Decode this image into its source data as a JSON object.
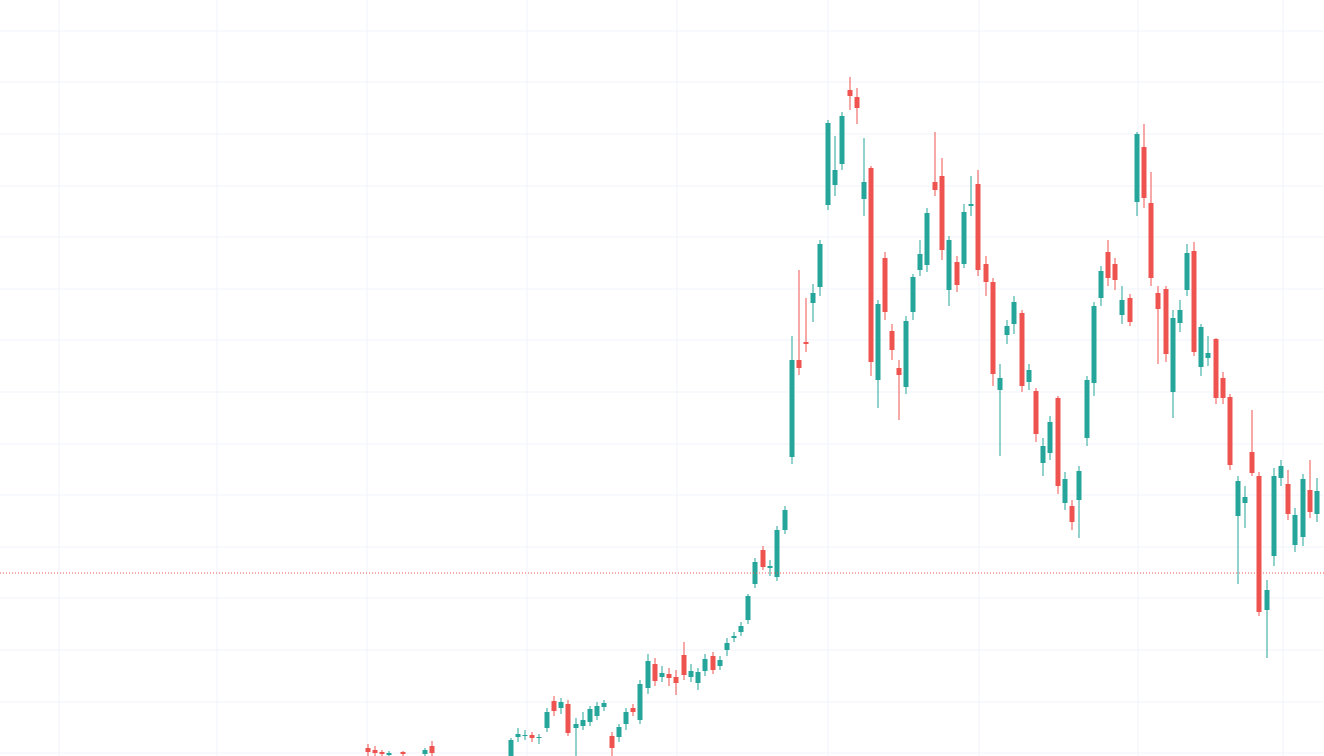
{
  "chart_data": {
    "type": "candlestick",
    "up_color": "#26a69a",
    "down_color": "#ef5350",
    "grid": true,
    "grid_color": "#f0f3fa",
    "price_line": 183,
    "price_line_color": "#ef5350",
    "xlim": [
      0,
      1324
    ],
    "ylim": [
      0,
      756
    ],
    "xticks": [
      59,
      217,
      367,
      527,
      677,
      828,
      979,
      1138,
      1283
    ],
    "yticks": [
      725,
      674,
      622,
      570,
      519,
      467,
      416,
      364,
      312,
      261,
      209,
      158,
      106,
      54,
      3
    ],
    "x": [
      368,
      375,
      382,
      389,
      403,
      425,
      432,
      511,
      518,
      525,
      532,
      539,
      547,
      554,
      561,
      568,
      576,
      583,
      590,
      597,
      604,
      612,
      619,
      626,
      633,
      640,
      648,
      655,
      662,
      669,
      676,
      684,
      691,
      698,
      705,
      713,
      720,
      727,
      734,
      741,
      748,
      755,
      763,
      770,
      777,
      785,
      792,
      799,
      806,
      813,
      820,
      828,
      835,
      842,
      850,
      857,
      864,
      871,
      878,
      885,
      892,
      899,
      906,
      913,
      920,
      927,
      935,
      942,
      949,
      957,
      964,
      971,
      978,
      986,
      993,
      1000,
      1007,
      1014,
      1022,
      1029,
      1036,
      1043,
      1050,
      1058,
      1065,
      1072,
      1079,
      1087,
      1094,
      1101,
      1108,
      1115,
      1122,
      1130,
      1137,
      1144,
      1151,
      1158,
      1166,
      1173,
      1180,
      1187,
      1194,
      1201,
      1208,
      1216,
      1223,
      1230,
      1238,
      1245,
      1252,
      1259,
      1267,
      1274,
      1281,
      1288,
      1295,
      1303,
      1310,
      1317
    ],
    "open": [
      8,
      6,
      4,
      1,
      4,
      2,
      10,
      0,
      19,
      20,
      21,
      18,
      28,
      55,
      48,
      52,
      28,
      30,
      34,
      40,
      49,
      20,
      19,
      32,
      48,
      36,
      68,
      92,
      79,
      82,
      79,
      101,
      79,
      73,
      85,
      100,
      90,
      106,
      118,
      124,
      136,
      172,
      206,
      188,
      179,
      226,
      299,
      396,
      414,
      453,
      469,
      551,
      571,
      592,
      666,
      659,
      557,
      588,
      376,
      498,
      425,
      388,
      369,
      444,
      486,
      491,
      574,
      580,
      466,
      494,
      492,
      550,
      572,
      492,
      474,
      366,
      421,
      432,
      443,
      374,
      365,
      293,
      303,
      358,
      253,
      250,
      256,
      318,
      373,
      458,
      504,
      492,
      441,
      458,
      554,
      609,
      553,
      463,
      467,
      364,
      433,
      466,
      505,
      389,
      398,
      417,
      378,
      359,
      240,
      253,
      304,
      280,
      146,
      200,
      278,
      272,
      211,
      219,
      266,
      242
    ],
    "high": [
      12,
      10,
      6,
      5,
      5,
      8,
      15,
      18,
      28,
      26,
      24,
      22,
      48,
      60,
      58,
      56,
      38,
      44,
      50,
      54,
      56,
      24,
      32,
      48,
      52,
      76,
      102,
      98,
      90,
      88,
      86,
      114,
      92,
      88,
      102,
      104,
      100,
      118,
      124,
      134,
      162,
      198,
      210,
      196,
      230,
      250,
      420,
      486,
      458,
      472,
      516,
      636,
      620,
      644,
      679,
      668,
      618,
      590,
      456,
      504,
      432,
      396,
      440,
      482,
      516,
      548,
      624,
      598,
      520,
      500,
      552,
      580,
      586,
      500,
      478,
      392,
      436,
      460,
      446,
      392,
      368,
      318,
      340,
      360,
      284,
      256,
      290,
      380,
      454,
      490,
      516,
      498,
      470,
      462,
      624,
      632,
      584,
      470,
      470,
      446,
      456,
      512,
      514,
      432,
      420,
      418,
      384,
      362,
      280,
      270,
      346,
      284,
      176,
      288,
      296,
      286,
      248,
      282,
      296,
      278
    ],
    "low": [
      0,
      0,
      0,
      0,
      0,
      0,
      0,
      0,
      14,
      16,
      14,
      12,
      24,
      40,
      42,
      20,
      0,
      26,
      30,
      36,
      45,
      0,
      14,
      26,
      40,
      32,
      62,
      70,
      74,
      70,
      61,
      76,
      74,
      66,
      80,
      82,
      86,
      100,
      114,
      120,
      132,
      168,
      186,
      180,
      175,
      222,
      292,
      381,
      404,
      434,
      460,
      546,
      560,
      586,
      646,
      632,
      540,
      380,
      348,
      436,
      396,
      336,
      362,
      436,
      480,
      484,
      560,
      496,
      450,
      464,
      488,
      540,
      480,
      460,
      370,
      300,
      412,
      422,
      364,
      366,
      314,
      280,
      296,
      262,
      246,
      226,
      218,
      310,
      360,
      450,
      470,
      466,
      432,
      430,
      540,
      548,
      470,
      392,
      394,
      338,
      424,
      460,
      400,
      380,
      390,
      352,
      352,
      286,
      172,
      228,
      280,
      140,
      98,
      190,
      270,
      236,
      204,
      210,
      238,
      234
    ],
    "close": [
      4,
      3,
      2,
      3,
      2,
      6,
      3,
      16,
      22,
      21,
      18,
      19,
      44,
      45,
      54,
      23,
      32,
      36,
      47,
      50,
      53,
      8,
      29,
      44,
      44,
      72,
      95,
      75,
      83,
      78,
      73,
      81,
      85,
      84,
      97,
      86,
      96,
      113,
      120,
      130,
      160,
      194,
      189,
      190,
      226,
      246,
      396,
      388,
      412,
      463,
      512,
      633,
      586,
      640,
      660,
      648,
      574,
      394,
      452,
      444,
      406,
      381,
      435,
      479,
      502,
      543,
      566,
      506,
      516,
      471,
      544,
      552,
      486,
      474,
      382,
      378,
      430,
      454,
      370,
      386,
      322,
      310,
      334,
      270,
      277,
      234,
      285,
      376,
      450,
      485,
      478,
      476,
      456,
      434,
      622,
      558,
      478,
      447,
      402,
      438,
      446,
      503,
      404,
      429,
      403,
      358,
      358,
      291,
      275,
      259,
      283,
      144,
      166,
      280,
      290,
      242,
      241,
      277,
      244,
      265
    ]
  }
}
